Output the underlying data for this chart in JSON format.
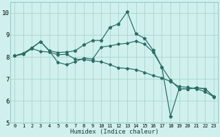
{
  "xlabel": "Humidex (Indice chaleur)",
  "background_color": "#cff0ed",
  "grid_color": "#aad4cf",
  "line_color": "#2a6e65",
  "spine_color": "#7ab8b0",
  "xlim": [
    -0.5,
    23.5
  ],
  "ylim": [
    5,
    10.5
  ],
  "yticks": [
    5,
    6,
    7,
    8,
    9,
    10
  ],
  "xticks": [
    0,
    1,
    2,
    3,
    4,
    5,
    6,
    7,
    8,
    9,
    10,
    11,
    12,
    13,
    14,
    15,
    16,
    17,
    18,
    19,
    20,
    21,
    22,
    23
  ],
  "line1_x": [
    0,
    1,
    2,
    3,
    4,
    5,
    6,
    7,
    8,
    9,
    10,
    11,
    12,
    13,
    14,
    15,
    16,
    17,
    18,
    19,
    20,
    21,
    22,
    23
  ],
  "line1_y": [
    8.05,
    8.17,
    8.4,
    8.7,
    8.28,
    8.2,
    8.22,
    8.28,
    8.55,
    8.75,
    8.75,
    9.35,
    9.5,
    10.05,
    9.05,
    8.85,
    8.3,
    7.55,
    5.3,
    6.55,
    6.55,
    6.6,
    6.55,
    6.2
  ],
  "line2_x": [
    0,
    1,
    2,
    3,
    4,
    5,
    6,
    7,
    8,
    9,
    10,
    11,
    12,
    13,
    14,
    15,
    16,
    17,
    18,
    19,
    20,
    21,
    22,
    23
  ],
  "line2_y": [
    8.05,
    8.15,
    8.42,
    8.7,
    8.28,
    7.75,
    7.65,
    7.78,
    7.95,
    7.9,
    8.45,
    8.5,
    8.58,
    8.62,
    8.72,
    8.58,
    8.22,
    7.55,
    6.95,
    6.55,
    6.55,
    6.6,
    6.55,
    6.2
  ],
  "line3_x": [
    0,
    1,
    2,
    3,
    4,
    5,
    6,
    7,
    8,
    9,
    10,
    11,
    12,
    13,
    14,
    15,
    16,
    17,
    18,
    19,
    20,
    21,
    22,
    23
  ],
  "line3_y": [
    8.05,
    8.12,
    8.38,
    8.25,
    8.22,
    8.1,
    8.12,
    7.9,
    7.88,
    7.82,
    7.78,
    7.65,
    7.5,
    7.48,
    7.42,
    7.3,
    7.15,
    7.05,
    6.88,
    6.65,
    6.62,
    6.55,
    6.42,
    6.18
  ]
}
